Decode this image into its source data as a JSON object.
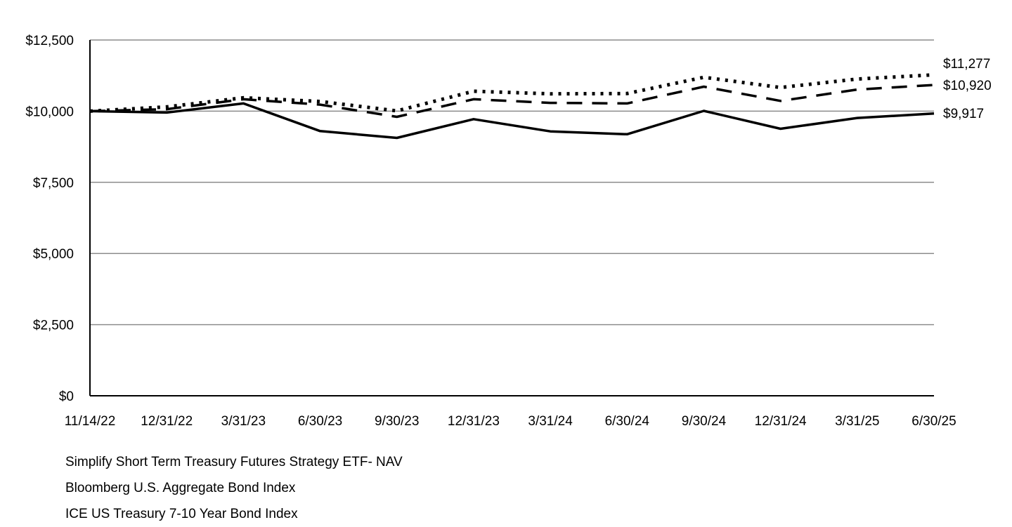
{
  "chart_data": {
    "type": "line",
    "title": "",
    "xlabel": "",
    "ylabel": "",
    "x": [
      "11/14/22",
      "12/31/22",
      "3/31/23",
      "6/30/23",
      "9/30/23",
      "12/31/23",
      "3/31/24",
      "6/30/24",
      "9/30/24",
      "12/31/24",
      "3/31/25",
      "6/30/25"
    ],
    "ylim": [
      0,
      12500
    ],
    "yticks": [
      0,
      2500,
      5000,
      7500,
      10000,
      12500
    ],
    "ytick_labels": [
      "$0",
      "$2,500",
      "$5,000",
      "$7,500",
      "$10,000",
      "$12,500"
    ],
    "grid": "horizontal",
    "legend_position": "bottom-left",
    "series": [
      {
        "name": "Simplify Short Term Treasury Futures Strategy ETF- NAV",
        "style": "solid",
        "color": "#000000",
        "values": [
          10000,
          9950,
          10270,
          9300,
          9060,
          9720,
          9290,
          9190,
          10010,
          9380,
          9760,
          9917
        ],
        "end_label": "$9,917"
      },
      {
        "name": "Bloomberg U.S. Aggregate Bond Index",
        "style": "dotted",
        "color": "#000000",
        "values": [
          10000,
          10150,
          10470,
          10340,
          10010,
          10700,
          10610,
          10620,
          11190,
          10830,
          11130,
          11277
        ],
        "end_label": "$11,277"
      },
      {
        "name": "ICE US Treasury 7-10 Year Bond Index",
        "style": "dashed",
        "color": "#000000",
        "values": [
          10000,
          10070,
          10420,
          10230,
          9800,
          10420,
          10290,
          10270,
          10860,
          10360,
          10760,
          10920
        ],
        "end_label": "$10,920"
      }
    ]
  }
}
